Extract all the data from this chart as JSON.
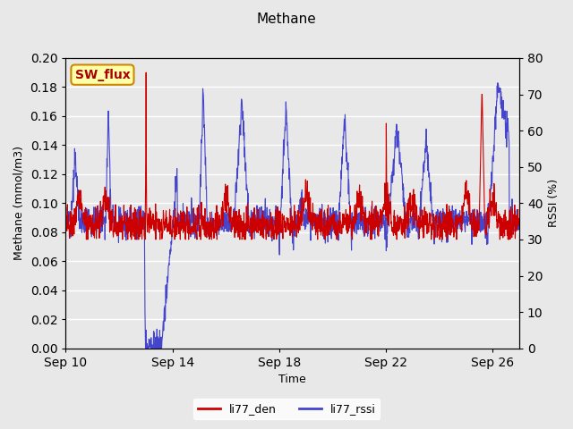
{
  "title": "Methane",
  "ylabel_left": "Methane (mmol/m3)",
  "ylabel_right": "RSSI (%)",
  "xlabel": "Time",
  "ylim_left": [
    0.0,
    0.2
  ],
  "ylim_right": [
    0,
    80
  ],
  "yticks_left": [
    0.0,
    0.02,
    0.04,
    0.06,
    0.08,
    0.1,
    0.12,
    0.14,
    0.16,
    0.18,
    0.2
  ],
  "yticks_right": [
    0,
    10,
    20,
    30,
    40,
    50,
    60,
    70,
    80
  ],
  "background_color": "#e8e8e8",
  "plot_bg_color": "#e8e8e8",
  "grid_color": "#ffffff",
  "legend_label_red": "li77_den",
  "legend_label_blue": "li77_rssi",
  "red_color": "#cc0000",
  "blue_color": "#4444cc",
  "annotation_text": "SW_flux",
  "annotation_bg": "#ffffaa",
  "annotation_border": "#cc8800",
  "annotation_text_color": "#aa0000"
}
